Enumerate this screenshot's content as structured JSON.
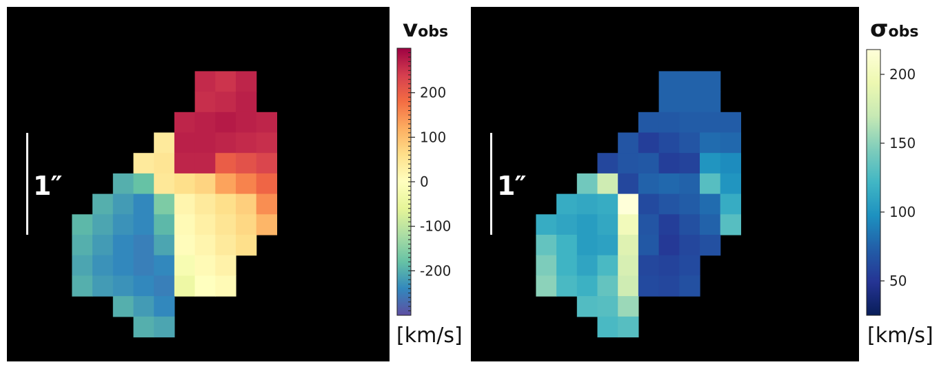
{
  "chart_data": [
    {
      "type": "heatmap",
      "title_symbol": "v",
      "title_subscript": "obs",
      "unit": "[km/s]",
      "scale_label": "1″",
      "colormap": "Spectral_r",
      "vmin": -300,
      "vmax": 300,
      "ticks": [
        200,
        100,
        0,
        -100,
        -200
      ],
      "grid_rows": 15,
      "grid_cols": 12,
      "background": "#000000",
      "values": [
        [
          null,
          null,
          null,
          null,
          null,
          null,
          null,
          null,
          null,
          null,
          null,
          null
        ],
        [
          null,
          null,
          null,
          null,
          null,
          null,
          null,
          null,
          null,
          null,
          null,
          null
        ],
        [
          null,
          null,
          null,
          null,
          null,
          null,
          null,
          null,
          260,
          250,
          265,
          null
        ],
        [
          null,
          null,
          null,
          null,
          null,
          null,
          null,
          null,
          255,
          260,
          270,
          null
        ],
        [
          null,
          null,
          null,
          null,
          null,
          null,
          null,
          265,
          270,
          275,
          270,
          265
        ],
        [
          null,
          null,
          null,
          null,
          null,
          null,
          40,
          270,
          270,
          265,
          260,
          255
        ],
        [
          null,
          null,
          null,
          null,
          null,
          40,
          50,
          265,
          265,
          200,
          215,
          230
        ],
        [
          null,
          null,
          null,
          null,
          -200,
          -180,
          45,
          60,
          75,
          130,
          160,
          190
        ],
        [
          null,
          null,
          null,
          -200,
          -220,
          -240,
          -160,
          20,
          40,
          60,
          80,
          150
        ],
        [
          null,
          null,
          -190,
          -210,
          -230,
          -240,
          -190,
          10,
          30,
          50,
          70,
          110
        ],
        [
          null,
          null,
          -200,
          -220,
          -240,
          -250,
          -210,
          5,
          20,
          40,
          60,
          null
        ],
        [
          null,
          null,
          -210,
          -230,
          -240,
          -250,
          -240,
          -20,
          10,
          25,
          null,
          null
        ],
        [
          null,
          null,
          -200,
          -220,
          -230,
          -240,
          -250,
          -40,
          0,
          10,
          null,
          null
        ],
        [
          null,
          null,
          null,
          null,
          -200,
          -220,
          -240,
          null,
          null,
          null,
          null,
          null
        ],
        [
          null,
          null,
          null,
          null,
          null,
          -200,
          -210,
          null,
          null,
          null,
          null,
          null
        ]
      ]
    },
    {
      "type": "heatmap",
      "title_symbol": "σ",
      "title_subscript": "obs",
      "unit": "[km/s]",
      "scale_label": "1″",
      "colormap": "YlGnBu_r",
      "vmin": 25,
      "vmax": 218,
      "ticks": [
        200,
        150,
        100,
        50
      ],
      "grid_rows": 15,
      "grid_cols": 12,
      "background": "#000000",
      "values": [
        [
          null,
          null,
          null,
          null,
          null,
          null,
          null,
          null,
          null,
          null,
          null,
          null
        ],
        [
          null,
          null,
          null,
          null,
          null,
          null,
          null,
          null,
          null,
          null,
          null,
          null
        ],
        [
          null,
          null,
          null,
          null,
          null,
          null,
          null,
          null,
          75,
          75,
          75,
          null
        ],
        [
          null,
          null,
          null,
          null,
          null,
          null,
          null,
          null,
          75,
          75,
          75,
          null
        ],
        [
          null,
          null,
          null,
          null,
          null,
          null,
          null,
          70,
          70,
          72,
          72,
          72
        ],
        [
          null,
          null,
          null,
          null,
          null,
          null,
          68,
          55,
          62,
          68,
          80,
          78
        ],
        [
          null,
          null,
          null,
          null,
          null,
          60,
          68,
          70,
          55,
          58,
          100,
          95
        ],
        [
          null,
          null,
          null,
          null,
          140,
          175,
          60,
          75,
          78,
          75,
          130,
          100
        ],
        [
          null,
          null,
          null,
          115,
          112,
          115,
          218,
          62,
          68,
          72,
          80,
          115
        ],
        [
          null,
          null,
          115,
          110,
          105,
          112,
          200,
          68,
          55,
          65,
          75,
          130
        ],
        [
          null,
          null,
          135,
          120,
          105,
          108,
          185,
          70,
          52,
          60,
          65,
          null
        ],
        [
          null,
          null,
          145,
          120,
          110,
          125,
          180,
          60,
          58,
          62,
          null,
          null
        ],
        [
          null,
          null,
          150,
          125,
          118,
          135,
          175,
          62,
          60,
          65,
          null,
          null
        ],
        [
          null,
          null,
          null,
          null,
          128,
          130,
          155,
          null,
          null,
          null,
          null,
          null
        ],
        [
          null,
          null,
          null,
          null,
          null,
          125,
          130,
          null,
          null,
          null,
          null,
          null
        ]
      ]
    }
  ]
}
